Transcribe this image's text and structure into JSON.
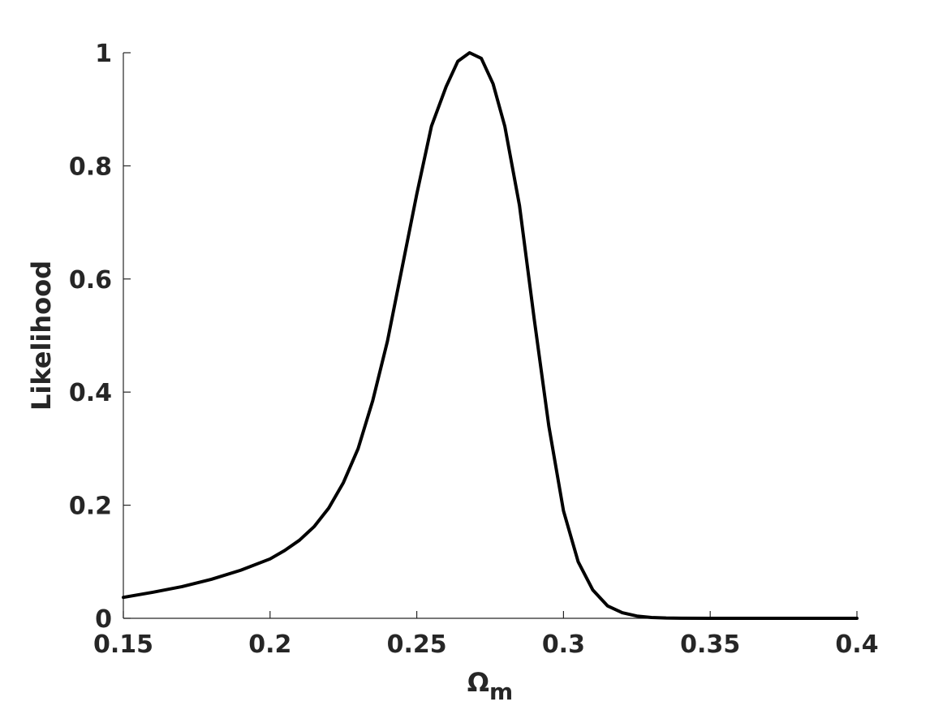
{
  "chart_data": {
    "type": "line",
    "xlabel": "Ω",
    "xlabel_subscript": "m",
    "ylabel": "Likelihood",
    "xlim": [
      0.15,
      0.4
    ],
    "ylim": [
      0,
      1
    ],
    "xticks": [
      0.15,
      0.2,
      0.25,
      0.3,
      0.35,
      0.4
    ],
    "xtick_labels": [
      "0.15",
      "0.2",
      "0.25",
      "0.3",
      "0.35",
      "0.4"
    ],
    "yticks": [
      0,
      0.2,
      0.4,
      0.6,
      0.8,
      1
    ],
    "ytick_labels": [
      "0",
      "0.2",
      "0.4",
      "0.6",
      "0.8",
      "1"
    ],
    "grid": false,
    "line_color": "#000000",
    "series": [
      {
        "x": [
          0.15,
          0.16,
          0.17,
          0.18,
          0.19,
          0.2,
          0.205,
          0.21,
          0.215,
          0.22,
          0.225,
          0.23,
          0.235,
          0.24,
          0.245,
          0.25,
          0.255,
          0.26,
          0.264,
          0.268,
          0.272,
          0.276,
          0.28,
          0.285,
          0.29,
          0.295,
          0.3,
          0.305,
          0.31,
          0.315,
          0.32,
          0.325,
          0.33,
          0.335,
          0.34,
          0.35,
          0.36,
          0.4
        ],
        "values": [
          0.037,
          0.046,
          0.056,
          0.069,
          0.085,
          0.105,
          0.12,
          0.138,
          0.162,
          0.195,
          0.24,
          0.3,
          0.385,
          0.49,
          0.62,
          0.75,
          0.87,
          0.94,
          0.985,
          1.0,
          0.99,
          0.945,
          0.87,
          0.73,
          0.53,
          0.34,
          0.19,
          0.1,
          0.05,
          0.022,
          0.01,
          0.004,
          0.0015,
          0.0005,
          0.0002,
          0.0,
          0.0,
          0.0
        ]
      }
    ]
  }
}
